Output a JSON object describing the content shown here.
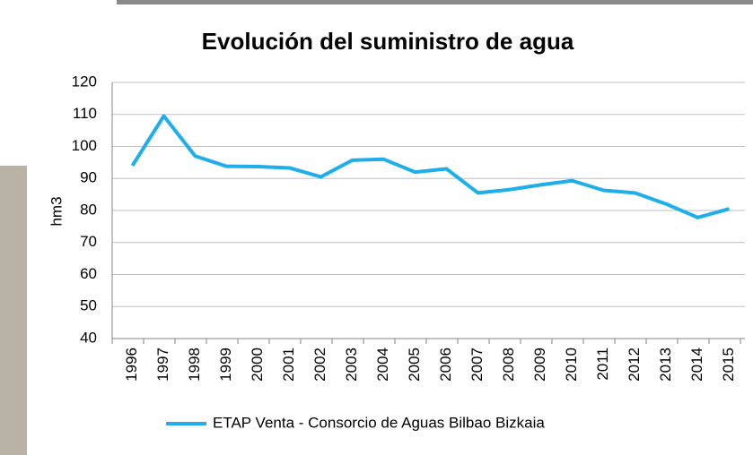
{
  "chart_data": {
    "type": "line",
    "title": "Evolución del suministro de agua",
    "y_label": "hm3",
    "categories": [
      "1996",
      "1997",
      "1998",
      "1999",
      "2000",
      "2001",
      "2002",
      "2003",
      "2004",
      "2005",
      "2006",
      "2007",
      "2008",
      "2009",
      "2010",
      "2011",
      "2012",
      "2013",
      "2014",
      "2015"
    ],
    "series": [
      {
        "name": "ETAP Venta - Consorcio de Aguas Bilbao Bizkaia",
        "color": "#1eaeea",
        "values": [
          94,
          109.5,
          97,
          93.8,
          93.7,
          93.3,
          90.5,
          95.7,
          96,
          92,
          93,
          85.5,
          86.5,
          88,
          89.3,
          86.3,
          85.5,
          82,
          77.8,
          80.5
        ]
      }
    ],
    "ylim": [
      40,
      120
    ],
    "yticks": [
      40,
      50,
      60,
      70,
      80,
      90,
      100,
      110,
      120
    ],
    "grid": true,
    "legend": "bottom"
  }
}
